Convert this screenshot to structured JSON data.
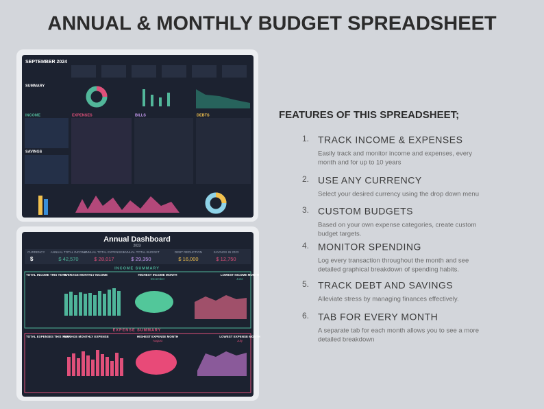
{
  "header": {
    "title": "ANNUAL & MONTHLY BUDGET SPREADSHEET"
  },
  "monthly": {
    "title": "SEPTEMBER  2024",
    "sections": [
      "SUMMARY",
      "INCOME",
      "EXPENSES",
      "BILLS",
      "DEBTS",
      "SAVINGS"
    ]
  },
  "annual": {
    "title": "Annual Dashboard",
    "year": "2023",
    "currency": {
      "label": "CURRENCY",
      "value": "$"
    },
    "kpis": [
      {
        "label": "ANNUAL TOTAL INCOME",
        "value": "$ 42,570"
      },
      {
        "label": "ANNUAL TOTAL EXPENSES",
        "value": "$ 28,017"
      },
      {
        "label": "ANNUAL TOTAL BUDGET",
        "value": "$ 29,350"
      },
      {
        "label": "DEBT REDUCTION",
        "value": "$ 16,000"
      },
      {
        "label": "SAVINGS IN 2023",
        "value": "$ 12,750"
      }
    ],
    "income_summary": {
      "heading": "INCOME SUMMARY",
      "stats": [
        "TOTAL INCOME THIS YEAR",
        "AVERAGE MONTHLY INCOME",
        "HIGHEST INCOME MONTH",
        "LOWEST INCOME MONTH"
      ],
      "months": [
        "December",
        "June"
      ]
    },
    "expense_summary": {
      "heading": "EXPENSE SUMMARY",
      "stats": [
        "TOTAL EXPENSES THIS YEAR",
        "AVERAGE MONTHLY EXPENSE",
        "HIGHEST EXPENSE MONTH",
        "LOWEST EXPENSE MONTH"
      ],
      "months": [
        "August",
        "July"
      ]
    }
  },
  "features": {
    "heading": "FEATURES OF THIS SPREADSHEET;",
    "items": [
      {
        "number": "1.",
        "title": "TRACK INCOME & EXPENSES",
        "lines": [
          "Easily track and monitor income and expenses, every",
          "month and for up to 10 years"
        ]
      },
      {
        "number": "2.",
        "title": "USE ANY CURRENCY",
        "lines": [
          "Select your desired currency using the drop down menu"
        ]
      },
      {
        "number": "3.",
        "title": "CUSTOM BUDGETS",
        "lines": [
          "Based on your own expense categories, create custom",
          "budget targets."
        ]
      },
      {
        "number": "4.",
        "title": "MONITOR SPENDING",
        "lines": [
          "Log every transaction throughout the month and see",
          "detailed graphical breakdown of spending habits."
        ]
      },
      {
        "number": "5.",
        "title": "TRACK DEBT AND SAVINGS",
        "lines": [
          "Alleviate stress by managing finances effectively."
        ]
      },
      {
        "number": "6.",
        "title": "TAB FOR EVERY MONTH",
        "lines": [
          "A separate tab for each month allows you to see a more",
          "detailed breakdown"
        ]
      }
    ]
  }
}
